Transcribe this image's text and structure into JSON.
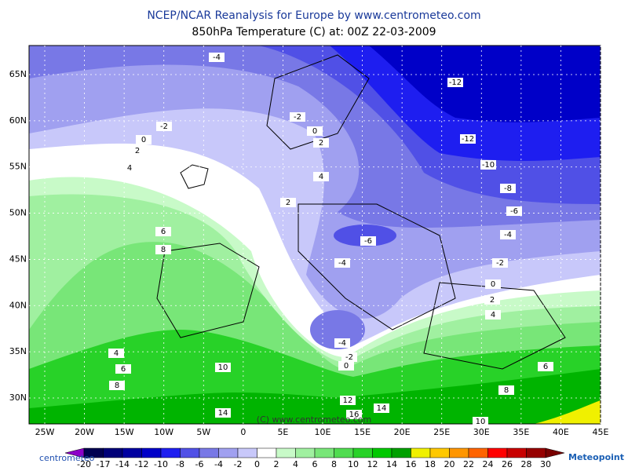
{
  "header": {
    "title": "NCEP/NCAR Reanalysis for Europe by www.centrometeo.com",
    "subtitle": "850hPa Temperature (C) at: 00Z 22-03-2009"
  },
  "map": {
    "lat_labels": [
      {
        "value": 65,
        "label": "65N"
      },
      {
        "value": 60,
        "label": "60N"
      },
      {
        "value": 55,
        "label": "55N"
      },
      {
        "value": 50,
        "label": "50N"
      },
      {
        "value": 45,
        "label": "45N"
      },
      {
        "value": 40,
        "label": "40N"
      },
      {
        "value": 35,
        "label": "35N"
      },
      {
        "value": 30,
        "label": "30N"
      }
    ],
    "lon_labels": [
      {
        "value": -25,
        "label": "25W"
      },
      {
        "value": -20,
        "label": "20W"
      },
      {
        "value": -15,
        "label": "15W"
      },
      {
        "value": -10,
        "label": "10W"
      },
      {
        "value": -5,
        "label": "5W"
      },
      0,
      {
        "value": 5,
        "label": "5E"
      },
      {
        "value": 10,
        "label": "10E"
      },
      {
        "value": 15,
        "label": "15E"
      },
      {
        "value": 20,
        "label": "20E"
      },
      {
        "value": 25,
        "label": "25E"
      },
      {
        "value": 30,
        "label": "30E"
      },
      {
        "value": 35,
        "label": "35E"
      },
      {
        "value": 40,
        "label": "40E"
      },
      {
        "value": 45,
        "label": "45E"
      }
    ],
    "contour_labels": [
      -4,
      -12,
      -2,
      -2,
      0,
      0,
      2,
      2,
      -12,
      4,
      4,
      -10,
      -8,
      -6,
      2,
      -6,
      -4,
      6,
      8,
      -4,
      -2,
      0,
      2,
      4,
      -4,
      -2,
      0,
      4,
      6,
      8,
      10,
      6,
      8,
      12,
      14,
      14,
      16,
      10
    ],
    "copyright": "(C) www.centrometeo.com"
  },
  "colorbar": {
    "ticks": [
      -20,
      -17,
      -14,
      -12,
      -10,
      -8,
      -6,
      -4,
      -2,
      0,
      2,
      4,
      6,
      8,
      10,
      12,
      14,
      16,
      18,
      20,
      22,
      24,
      26,
      28,
      30
    ],
    "colors": [
      "#000050",
      "#000078",
      "#0000a0",
      "#0000c8",
      "#1e1ef0",
      "#5050e6",
      "#7878e6",
      "#a0a0f0",
      "#c8c8fa",
      "#ffffff",
      "#c8fac8",
      "#a0f0a0",
      "#78e678",
      "#50dc50",
      "#28d228",
      "#00c800",
      "#00a000",
      "#f0f000",
      "#ffc800",
      "#ff9600",
      "#ff6400",
      "#ff0000",
      "#c80000",
      "#960000"
    ],
    "under_color": "#8c00c8",
    "over_color": "#780000"
  },
  "logos": {
    "left": "centrometeo",
    "right": "Meteopoint"
  }
}
